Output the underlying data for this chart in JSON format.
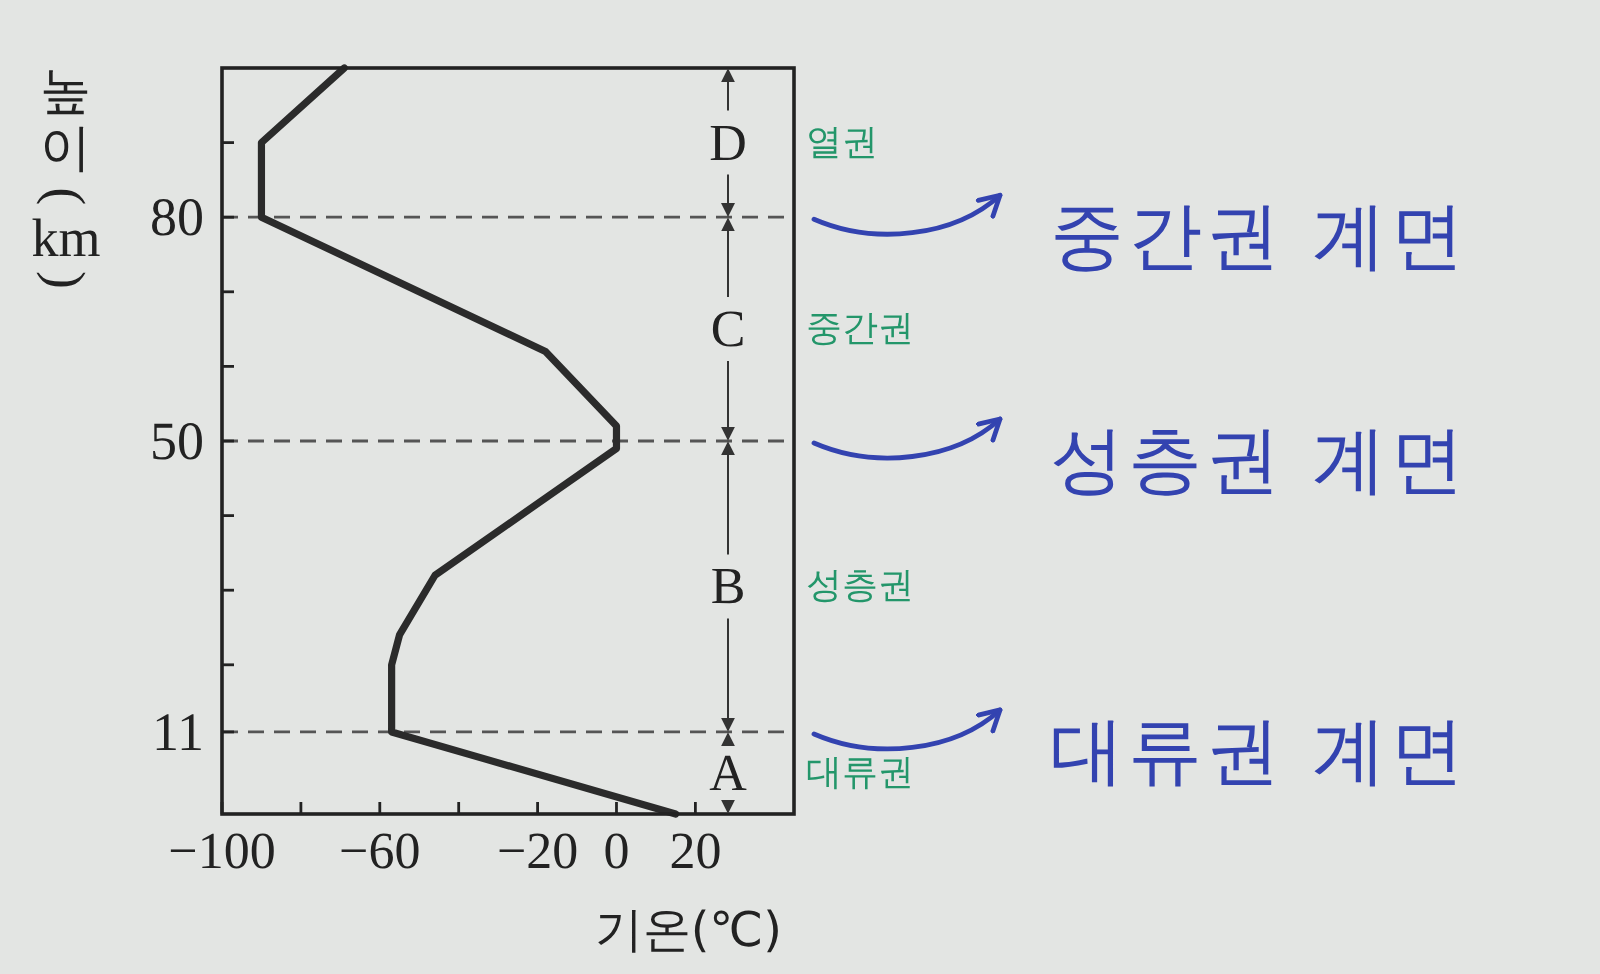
{
  "chart_data": {
    "type": "line",
    "xlabel": "기온(℃)",
    "ylabel": "높이(km)",
    "series": [
      {
        "color": "#2b2b2b",
        "x": [
          15,
          -57,
          -57,
          -55,
          -46,
          0,
          0,
          -18,
          -90,
          -90,
          -69
        ],
        "values": [
          0,
          11,
          20,
          24,
          32,
          49,
          52,
          62,
          80,
          90,
          100
        ]
      }
    ],
    "xlim": [
      -100,
      45
    ],
    "ylim": [
      0,
      100
    ],
    "xticks": [
      -100,
      {
        "value": -80,
        "label": null
      },
      -60,
      {
        "value": -40,
        "label": null
      },
      -20,
      0,
      20
    ],
    "yticks": [
      11,
      {
        "value": 20,
        "label": null
      },
      {
        "value": 30,
        "label": null
      },
      {
        "value": 40,
        "label": null
      },
      50,
      {
        "value": 60,
        "label": null
      },
      {
        "value": 70,
        "label": null
      },
      80,
      {
        "value": 90,
        "label": null
      }
    ],
    "ref_lines": [
      {
        "axis": "y",
        "value": 80,
        "color": "#555555",
        "line_style": "dashed"
      },
      {
        "axis": "y",
        "value": 50,
        "color": "#555555",
        "line_style": "dashed"
      },
      {
        "axis": "y",
        "value": 11,
        "color": "#555555",
        "line_style": "dashed"
      }
    ],
    "annotations": [
      {
        "text": "D",
        "y": 80
      },
      "열권",
      "중간권 계면",
      {
        "text": "C",
        "y": 50
      },
      "중간권",
      "성층권 계면",
      {
        "text": "B",
        "y": 11
      },
      "성층권",
      "대류권 계면",
      "A",
      "대류권"
    ]
  }
}
